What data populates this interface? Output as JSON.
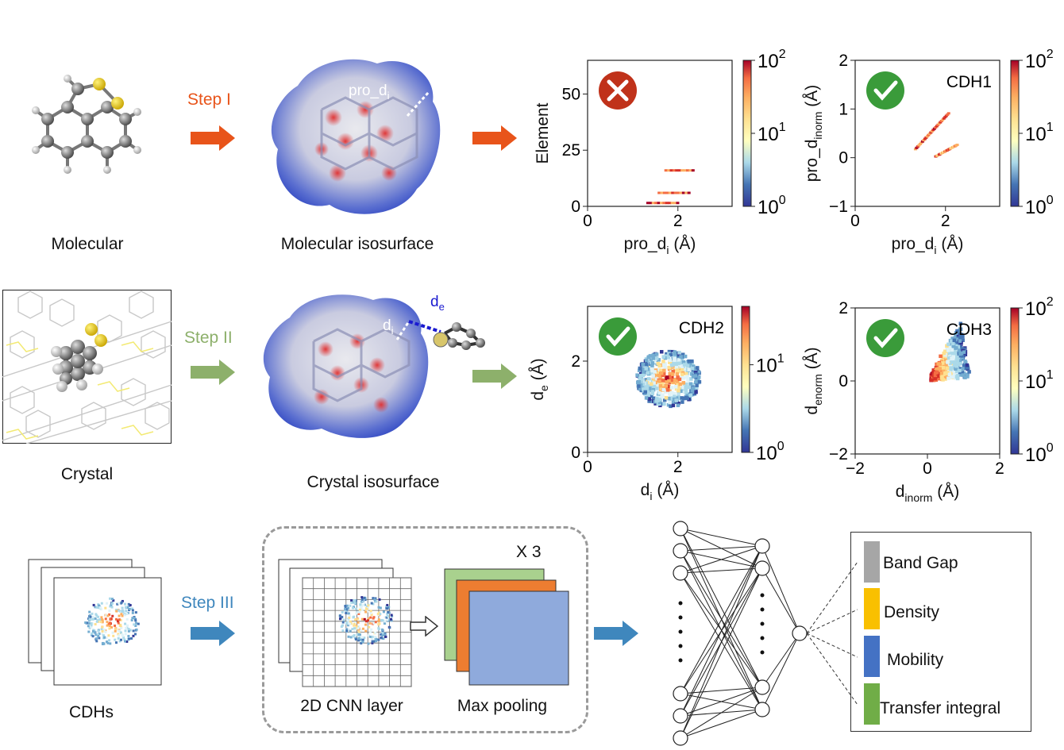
{
  "row1": {
    "molecular_label": "Molecular",
    "step1_label": "Step I",
    "isosurface_label": "Molecular isosurface",
    "isosurface_annotation": "pro_d",
    "isosurface_annotation_sub": "i"
  },
  "row2": {
    "crystal_label": "Crystal",
    "step2_label": "Step II",
    "isosurface_label": "Crystal isosurface",
    "annotation_de": "d",
    "annotation_de_sub": "e",
    "annotation_di": "d",
    "annotation_di_sub": "i"
  },
  "row3": {
    "cdhs_label": "CDHs",
    "step3_label": "Step III",
    "cnn_label": "2D CNN layer",
    "pool_label": "Max pooling",
    "repeat_label": "X 3",
    "outputs": [
      "Band Gap",
      "Density",
      "Mobility",
      "Transfer integral"
    ]
  },
  "colors": {
    "step1": "#e8541a",
    "step2": "#8db06b",
    "step3": "#3f87bd",
    "out_band_gap": "#a6a6a6",
    "out_density": "#f9c000",
    "out_mobility": "#4472c4",
    "out_transfer": "#70ad47",
    "pool_green": "#a9d18e",
    "pool_orange": "#ed7d31",
    "pool_blue": "#8faadc",
    "check_green": "#3a9b3a",
    "cross_red": "#c0321a"
  },
  "chart_data": [
    {
      "type": "heatmap",
      "title": "",
      "badge": "cross",
      "xlabel": "pro_d",
      "xlabel_sub": "i",
      "xlabel_unit": " (Å)",
      "ylabel": "Element",
      "xticks": [
        "0",
        "2"
      ],
      "yticks": [
        "0",
        "25",
        "50"
      ],
      "xlim": [
        0,
        3.2
      ],
      "ylim": [
        0,
        65
      ],
      "colorbar_ticks": [
        "10",
        "10",
        "10"
      ],
      "colorbar_exps": [
        "2",
        "1",
        "0"
      ]
    },
    {
      "type": "heatmap",
      "title": "CDH1",
      "badge": "check",
      "xlabel": "pro_d",
      "xlabel_sub": "i",
      "xlabel_unit": " (Å)",
      "ylabel": "pro_d",
      "ylabel_sub": "inorm",
      "ylabel_unit": " (Å)",
      "xticks": [
        "0",
        "2"
      ],
      "yticks": [
        "−1",
        "0",
        "1",
        "2"
      ],
      "xlim": [
        0,
        3.2
      ],
      "ylim": [
        -1,
        2
      ],
      "colorbar_ticks": [
        "10",
        "10",
        "10"
      ],
      "colorbar_exps": [
        "2",
        "1",
        "0"
      ]
    },
    {
      "type": "heatmap",
      "title": "CDH2",
      "badge": "check",
      "xlabel": "d",
      "xlabel_sub": "i",
      "xlabel_unit": " (Å)",
      "ylabel": "d",
      "ylabel_sub": "e",
      "ylabel_unit": " (Å)",
      "xticks": [
        "0",
        "2"
      ],
      "yticks": [
        "0",
        "2"
      ],
      "xlim": [
        0,
        3.2
      ],
      "ylim": [
        0,
        3.2
      ],
      "colorbar_ticks": [
        "10",
        "10"
      ],
      "colorbar_exps": [
        "1",
        "0"
      ]
    },
    {
      "type": "heatmap",
      "title": "CDH3",
      "badge": "check",
      "xlabel": "d",
      "xlabel_sub": "inorm",
      "xlabel_unit": " (Å)",
      "ylabel": "d",
      "ylabel_sub": "enorm",
      "ylabel_unit": " (Å)",
      "xticks": [
        "−2",
        "0",
        "2"
      ],
      "yticks": [
        "−2",
        "0",
        "2"
      ],
      "xlim": [
        -2,
        2
      ],
      "ylim": [
        -2,
        2
      ],
      "colorbar_ticks": [
        "10",
        "10",
        "10"
      ],
      "colorbar_exps": [
        "2",
        "1",
        "0"
      ]
    }
  ]
}
